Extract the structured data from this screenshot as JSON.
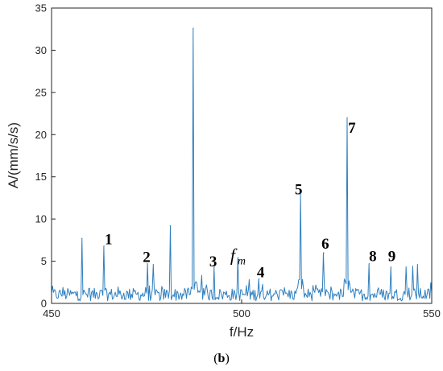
{
  "caption": {
    "open": "(",
    "letter": "b",
    "close": ")"
  },
  "chart_data": {
    "type": "line",
    "xlabel": "f/Hz",
    "ylabel": "A/(mm/s/s)",
    "xlim": [
      450,
      550
    ],
    "ylim": [
      0,
      35
    ],
    "xticks": [
      "450",
      "500",
      "550"
    ],
    "yticks": [
      "0",
      "5",
      "10",
      "15",
      "20",
      "25",
      "30",
      "35"
    ],
    "grid": false,
    "line_color": "#2f7fbf",
    "series": [
      {
        "peaks": [
          [
            458,
            7.7
          ],
          [
            463.8,
            6.8
          ],
          [
            475.2,
            4.7
          ],
          [
            476.8,
            4.6
          ],
          [
            481.2,
            9.2
          ],
          [
            487.3,
            32.6
          ],
          [
            489.5,
            3.3
          ],
          [
            492.8,
            4.3
          ],
          [
            499.1,
            5.4
          ],
          [
            504.6,
            2.9
          ],
          [
            515.5,
            12.9
          ],
          [
            521.6,
            6.0
          ],
          [
            527.8,
            22.0
          ],
          [
            533.6,
            4.7
          ],
          [
            539.3,
            4.3
          ],
          [
            543.3,
            4.3
          ],
          [
            545,
            4.4
          ],
          [
            546.3,
            4.6
          ]
        ]
      }
    ],
    "annotations": [
      {
        "text": "1",
        "x": 465.0,
        "y": 7.0
      },
      {
        "text": "2",
        "x": 475.0,
        "y": 4.9
      },
      {
        "text": "3",
        "x": 492.5,
        "y": 4.4
      },
      {
        "text": "4",
        "x": 505.0,
        "y": 3.1
      },
      {
        "text": "5",
        "x": 515.0,
        "y": 12.9
      },
      {
        "text": "6",
        "x": 522.0,
        "y": 6.5
      },
      {
        "text": "7",
        "x": 529.0,
        "y": 20.2
      },
      {
        "text": "8",
        "x": 534.5,
        "y": 5.0
      },
      {
        "text": "9",
        "x": 539.5,
        "y": 5.0
      }
    ],
    "fm_label": {
      "main": "f",
      "sub": "m",
      "x": 498.5,
      "y": 5.0
    }
  }
}
